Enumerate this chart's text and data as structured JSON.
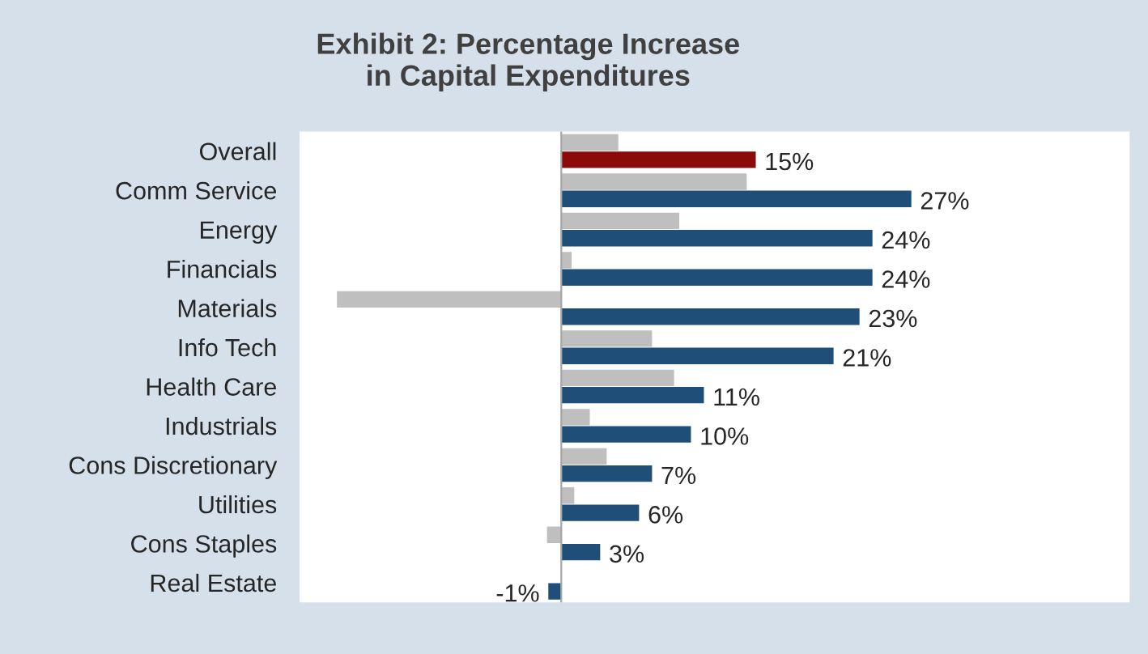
{
  "chart_data": {
    "type": "bar",
    "orientation": "horizontal",
    "title": "Exhibit 2: Percentage Increase\nin Capital Expenditures",
    "categories": [
      "Overall",
      "Comm Service",
      "Energy",
      "Financials",
      "Materials",
      "Info Tech",
      "Health Care",
      "Industrials",
      "Cons Discretionary",
      "Utilities",
      "Cons Staples",
      "Real Estate"
    ],
    "series": [
      {
        "color": "#bfbfbf",
        "values": [
          4.4,
          14.3,
          9.1,
          0.8,
          -17.3,
          7.0,
          8.7,
          2.2,
          3.5,
          1.0,
          -1.1,
          null
        ]
      },
      {
        "colors": [
          "#8b0a0a",
          "#1f4e79",
          "#1f4e79",
          "#1f4e79",
          "#1f4e79",
          "#1f4e79",
          "#1f4e79",
          "#1f4e79",
          "#1f4e79",
          "#1f4e79",
          "#1f4e79",
          "#1f4e79"
        ],
        "values": [
          15,
          27,
          24,
          24,
          23,
          21,
          11,
          10,
          7,
          6,
          3,
          -1
        ],
        "value_labels": [
          "15%",
          "27%",
          "24%",
          "24%",
          "23%",
          "21%",
          "11%",
          "10%",
          "7%",
          "6%",
          "3%",
          "-1%"
        ]
      }
    ],
    "grid": false,
    "legend": false
  }
}
